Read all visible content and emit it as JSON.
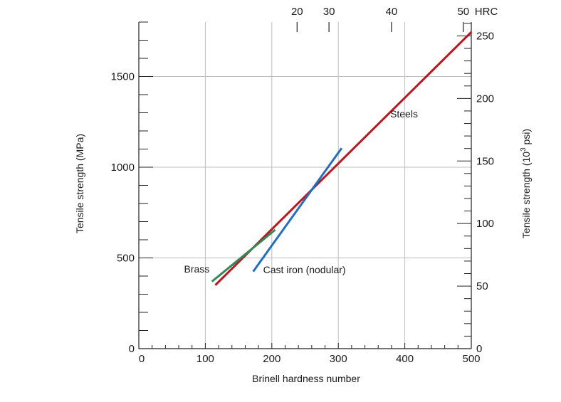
{
  "chart_data": {
    "type": "line",
    "xlabel": "Brinell hardness number",
    "ylabel_left": "Tensile strength (MPa)",
    "ylabel_right_main": "Tensile strength (10",
    "ylabel_right_sup": "3",
    "ylabel_right_tail": " psi)",
    "xlim": [
      0,
      500
    ],
    "ylim": [
      0,
      1800
    ],
    "x_ticks": [
      0,
      100,
      200,
      300,
      400,
      500
    ],
    "x_tick_labels": [
      "0",
      "100",
      "200",
      "300",
      "400",
      "500"
    ],
    "y_ticks_left": [
      0,
      500,
      1000,
      1500
    ],
    "y_tick_labels_left": [
      "0",
      "500",
      "1000",
      "1500"
    ],
    "y_ticks_right_psi": [
      0,
      50,
      100,
      150,
      200,
      250
    ],
    "y_tick_labels_right": [
      "0",
      "50",
      "100",
      "150",
      "200",
      "250"
    ],
    "psi_to_mpa": 6.895,
    "hrc_ticks": [
      {
        "label": "20",
        "bhn": 238
      },
      {
        "label": "30",
        "bhn": 286
      },
      {
        "label": "40",
        "bhn": 380
      },
      {
        "label": "50",
        "bhn": 488
      }
    ],
    "hrc_unit": "HRC",
    "grid": true,
    "series": [
      {
        "name": "Steels",
        "color": "#c0151d",
        "points": [
          [
            115,
            350
          ],
          [
            500,
            1745
          ]
        ]
      },
      {
        "name": "Cast iron (nodular)",
        "color": "#1f6fc4",
        "points": [
          [
            172,
            425
          ],
          [
            305,
            1105
          ]
        ]
      },
      {
        "name": "Brass",
        "color": "#2e8b57",
        "points": [
          [
            110,
            370
          ],
          [
            205,
            655
          ]
        ]
      }
    ],
    "annotations": [
      {
        "text": "Steels",
        "x": 378,
        "y": 1295
      },
      {
        "text": "Cast iron (nodular)",
        "x": 187,
        "y": 435
      },
      {
        "text": "Brass",
        "x": 68,
        "y": 440
      }
    ]
  }
}
